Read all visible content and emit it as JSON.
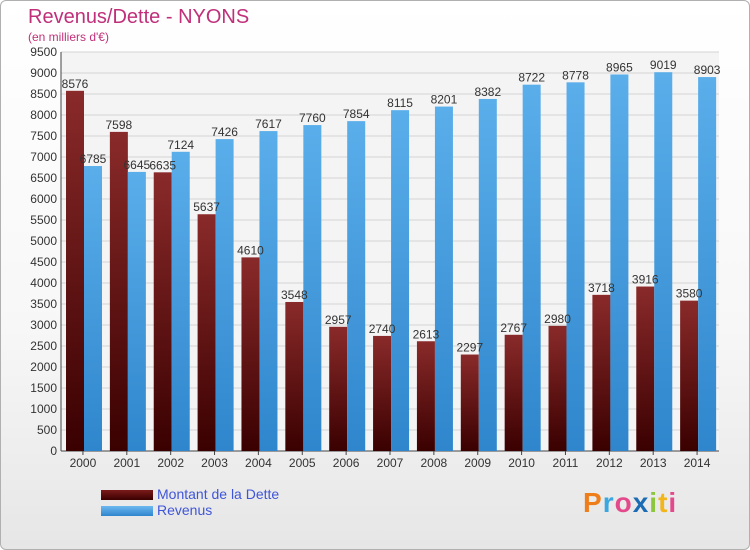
{
  "title": "Revenus/Dette - NYONS",
  "subtitle": "(en milliers d'€)",
  "colors": {
    "dette": "#7b1a1a",
    "revenus": "#4ea3e6",
    "title": "#c0307a",
    "legend": "#3f55d8"
  },
  "logo": {
    "text": "Proxiti",
    "letters": [
      "P",
      "r",
      "o",
      "x",
      "i",
      "t",
      "i"
    ],
    "colors": [
      "#ef7d1a",
      "#3ba7e0",
      "#e34a8c",
      "#1c6bb5",
      "#8cc63e",
      "#f2b51b",
      "#e34a8c"
    ]
  },
  "legend": [
    {
      "label": "Montant de la Dette",
      "color": "#7b1a1a"
    },
    {
      "label": "Revenus",
      "color": "#4ea3e6"
    }
  ],
  "chart_data": {
    "type": "bar",
    "categories": [
      "2000",
      "2001",
      "2002",
      "2003",
      "2004",
      "2005",
      "2006",
      "2007",
      "2008",
      "2009",
      "2010",
      "2011",
      "2012",
      "2013",
      "2014"
    ],
    "series": [
      {
        "name": "Montant de la Dette",
        "values": [
          8576,
          7598,
          6635,
          5637,
          4610,
          3548,
          2957,
          2740,
          2613,
          2297,
          2767,
          2980,
          3718,
          3916,
          3580
        ],
        "labels": [
          "8576",
          "7598",
          "6635",
          "5637",
          "4610",
          "3548",
          "2957",
          "2740",
          "2613",
          "2297",
          "2767",
          "2980",
          "3718",
          "3916",
          "3580"
        ]
      },
      {
        "name": "Revenus",
        "values": [
          6785,
          6645,
          7124,
          7426,
          7617,
          7760,
          7854,
          8115,
          8201,
          8382,
          8722,
          8778,
          8965,
          9019,
          8903
        ],
        "labels": [
          "6785",
          "6645",
          "7124",
          "7426",
          "7617",
          "7760",
          "7854",
          "8115",
          "8201",
          "8382",
          "8722",
          "8778",
          "8965",
          "9019",
          "8903"
        ]
      }
    ],
    "yticks": [
      "0",
      "500",
      "1000",
      "1500",
      "2000",
      "2500",
      "3000",
      "3500",
      "4000",
      "4500",
      "5000",
      "5500",
      "6000",
      "6500",
      "7000",
      "7500",
      "8000",
      "8500",
      "9000",
      "9500"
    ],
    "ylim": [
      0,
      9500
    ],
    "grid": true,
    "legend_position": "bottom-left"
  }
}
